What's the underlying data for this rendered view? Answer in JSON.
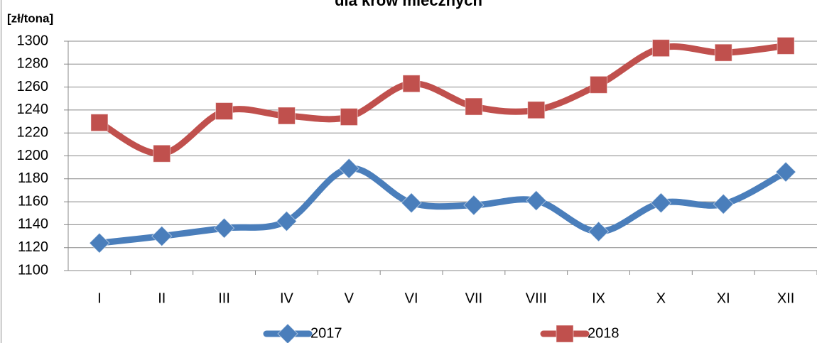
{
  "chart_data": {
    "type": "line",
    "title": "dla krów mlecznych",
    "y_label": "[zł/tona]",
    "categories": [
      "I",
      "II",
      "III",
      "IV",
      "V",
      "VI",
      "VII",
      "VIII",
      "IX",
      "X",
      "XI",
      "XII"
    ],
    "series": [
      {
        "name": "2017",
        "color": "#4a7ebb",
        "marker": "diamond",
        "values": [
          1124,
          1130,
          1137,
          1143,
          1189,
          1159,
          1157,
          1161,
          1134,
          1159,
          1158,
          1186
        ]
      },
      {
        "name": "2018",
        "color": "#c0504d",
        "marker": "square",
        "values": [
          1229,
          1202,
          1239,
          1235,
          1234,
          1263,
          1243,
          1240,
          1262,
          1294,
          1290,
          1296
        ]
      }
    ],
    "ylim": [
      1100,
      1300
    ],
    "yticks": [
      1100,
      1120,
      1140,
      1160,
      1180,
      1200,
      1220,
      1240,
      1260,
      1280,
      1300
    ],
    "grid": true,
    "legend": "bottom"
  }
}
